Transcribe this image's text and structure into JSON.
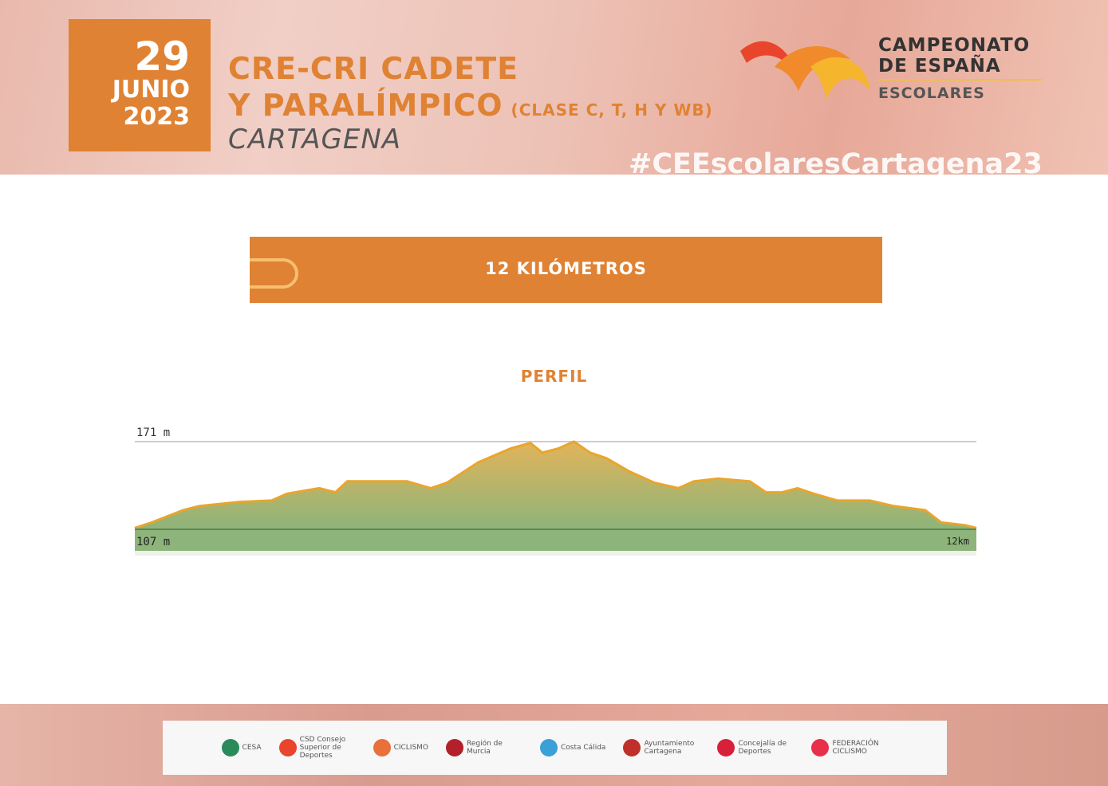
{
  "header": {
    "day": "29",
    "month": "JUNIO",
    "year": "2023",
    "title_line1": "CRE-CRI CADETE",
    "title_line2": "Y PARALÍMPICO",
    "title_class": "(CLASE C, T, H Y WB)",
    "city": "CARTAGENA",
    "brand_line1": "CAMPEONATO",
    "brand_line2": "DE ESPAÑA",
    "brand_line3": "ESCOLARES",
    "hashtag": "#CEEscolaresCartagena23"
  },
  "distance": {
    "label": "12 KILÓMETROS"
  },
  "profile": {
    "title": "PERFIL"
  },
  "colors": {
    "accent": "#e08233",
    "fill_top": "#e2b45a",
    "fill_bottom": "#8db47a",
    "line": "#e9a52c"
  },
  "chart_data": {
    "type": "area",
    "title": "PERFIL",
    "ymax_label": "171 m",
    "ymin_label": "107 m",
    "xmax_label": "12km",
    "ylim": [
      107,
      171
    ],
    "xlim": [
      0,
      12
    ],
    "x": [
      0,
      0.24,
      0.69,
      0.92,
      1.49,
      1.95,
      2.17,
      2.63,
      2.86,
      3.03,
      3.42,
      3.88,
      4.22,
      4.45,
      4.9,
      5.36,
      5.64,
      5.81,
      6.04,
      6.26,
      6.49,
      6.72,
      7.06,
      7.41,
      7.75,
      7.97,
      8.32,
      8.77,
      9.0,
      9.23,
      9.45,
      9.68,
      10.02,
      10.48,
      10.82,
      11.27,
      11.5,
      11.84,
      12
    ],
    "y": [
      108,
      112,
      121,
      124,
      127,
      128,
      133,
      137,
      134,
      142,
      142,
      142,
      137,
      141,
      156,
      166,
      170,
      163,
      166,
      171,
      163,
      159,
      149,
      141,
      137,
      142,
      144,
      142,
      134,
      134,
      137,
      133,
      128,
      128,
      124,
      121,
      112,
      110,
      108
    ]
  },
  "sponsors": [
    "CESA",
    "CSD Consejo Superior de Deportes",
    "CICLISMO",
    "Región de Murcia",
    "Costa Cálida",
    "Ayuntamiento Cartagena",
    "Concejalía de Deportes",
    "FEDERACIÓN CICLISMO"
  ]
}
